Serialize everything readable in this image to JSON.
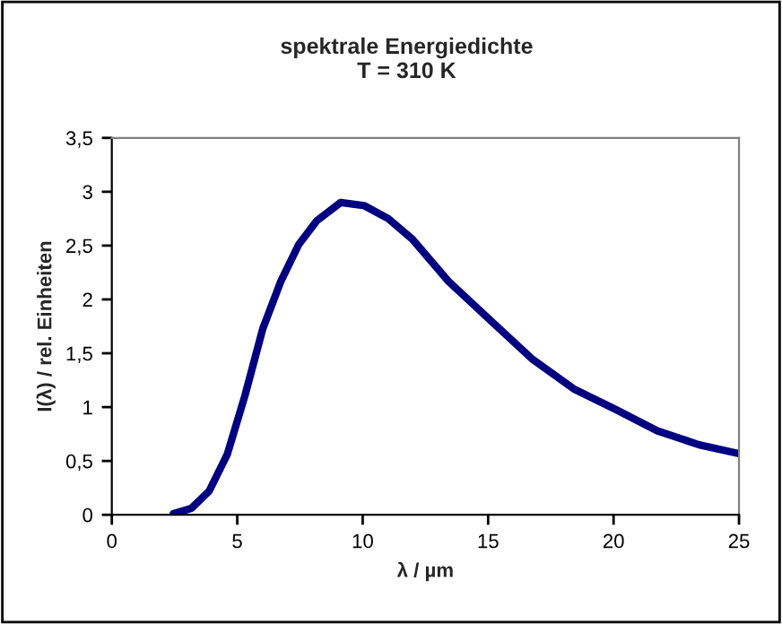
{
  "chart_data": {
    "type": "line",
    "title": "spektrale Energiedichte\nT = 310 K",
    "xlabel": "λ / µm",
    "ylabel": "I(λ) / rel. Einheiten",
    "series": [
      {
        "color": "#000080",
        "x": [
          2.45,
          3.17,
          3.88,
          4.6,
          5.31,
          6.02,
          6.74,
          7.45,
          8.17,
          9.12,
          10.07,
          11.02,
          11.98,
          13.41,
          15.07,
          16.74,
          18.41,
          20.07,
          21.74,
          23.41,
          24.96
        ],
        "values": [
          0.01,
          0.06,
          0.22,
          0.56,
          1.11,
          1.73,
          2.17,
          2.51,
          2.73,
          2.9,
          2.87,
          2.75,
          2.56,
          2.17,
          1.81,
          1.45,
          1.17,
          0.98,
          0.78,
          0.65,
          0.57
        ]
      }
    ],
    "xlim": [
      0,
      25
    ],
    "xticks": [
      0,
      5,
      10,
      15,
      20,
      25
    ],
    "ylim": [
      0,
      3.5
    ],
    "yticks": [
      0,
      {
        "value": 0.5,
        "label": "0,5"
      },
      1,
      {
        "value": 1.5,
        "label": "1,5"
      },
      2,
      {
        "value": 2.5,
        "label": "2,5"
      },
      3,
      {
        "value": 3.5,
        "label": "3,5"
      }
    ],
    "grid": false,
    "legend": false,
    "marker": "none",
    "line_style": "solid"
  }
}
